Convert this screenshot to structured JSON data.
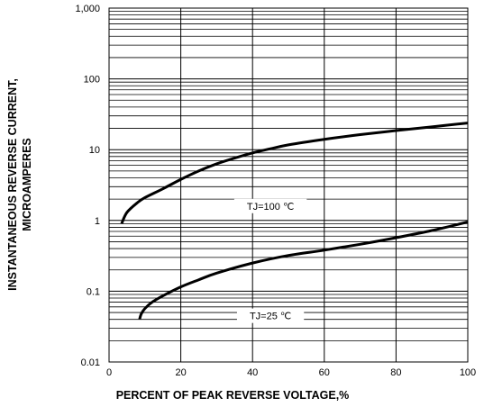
{
  "chart_data": {
    "type": "line",
    "title": "",
    "xlabel": "PERCENT OF PEAK REVERSE VOLTAGE,%",
    "ylabel_lines": [
      "INSTANTANEOUS REVERSE CURRENT,",
      "MICROAMPERES"
    ],
    "x_scale": "linear",
    "y_scale": "log",
    "xlim": [
      0,
      100
    ],
    "ylim": [
      0.01,
      1000
    ],
    "x_ticks": [
      0,
      20,
      40,
      60,
      80,
      100
    ],
    "x_tick_labels": [
      "0",
      "20",
      "40",
      "60",
      "80",
      "100"
    ],
    "y_ticks": [
      0.01,
      0.1,
      1,
      10,
      100,
      1000
    ],
    "y_tick_labels": [
      "0.01",
      "0.1",
      "1",
      "10",
      "100",
      "1,000"
    ],
    "grid": true,
    "series": [
      {
        "name": "TJ=100 ℃",
        "x": [
          3.5,
          5,
          8,
          10,
          15,
          20,
          25,
          30,
          35,
          40,
          45,
          50,
          60,
          70,
          80,
          90,
          100
        ],
        "y": [
          0.9,
          1.3,
          1.8,
          2.1,
          2.8,
          3.8,
          5.0,
          6.3,
          7.6,
          9.0,
          10.3,
          11.7,
          14.0,
          16.3,
          18.6,
          21.0,
          23.8
        ]
      },
      {
        "name": "TJ=25 ℃",
        "x": [
          8.5,
          9,
          10,
          12,
          15,
          20,
          25,
          30,
          40,
          50,
          60,
          70,
          80,
          90,
          100
        ],
        "y": [
          0.04,
          0.048,
          0.057,
          0.07,
          0.086,
          0.115,
          0.145,
          0.18,
          0.25,
          0.32,
          0.38,
          0.46,
          0.57,
          0.72,
          0.95
        ]
      }
    ],
    "annotations": [
      {
        "text": "TJ=100 ℃",
        "x": 45,
        "y": 1.6
      },
      {
        "text": "TJ=25 ℃",
        "x": 45,
        "y": 0.045
      }
    ]
  }
}
